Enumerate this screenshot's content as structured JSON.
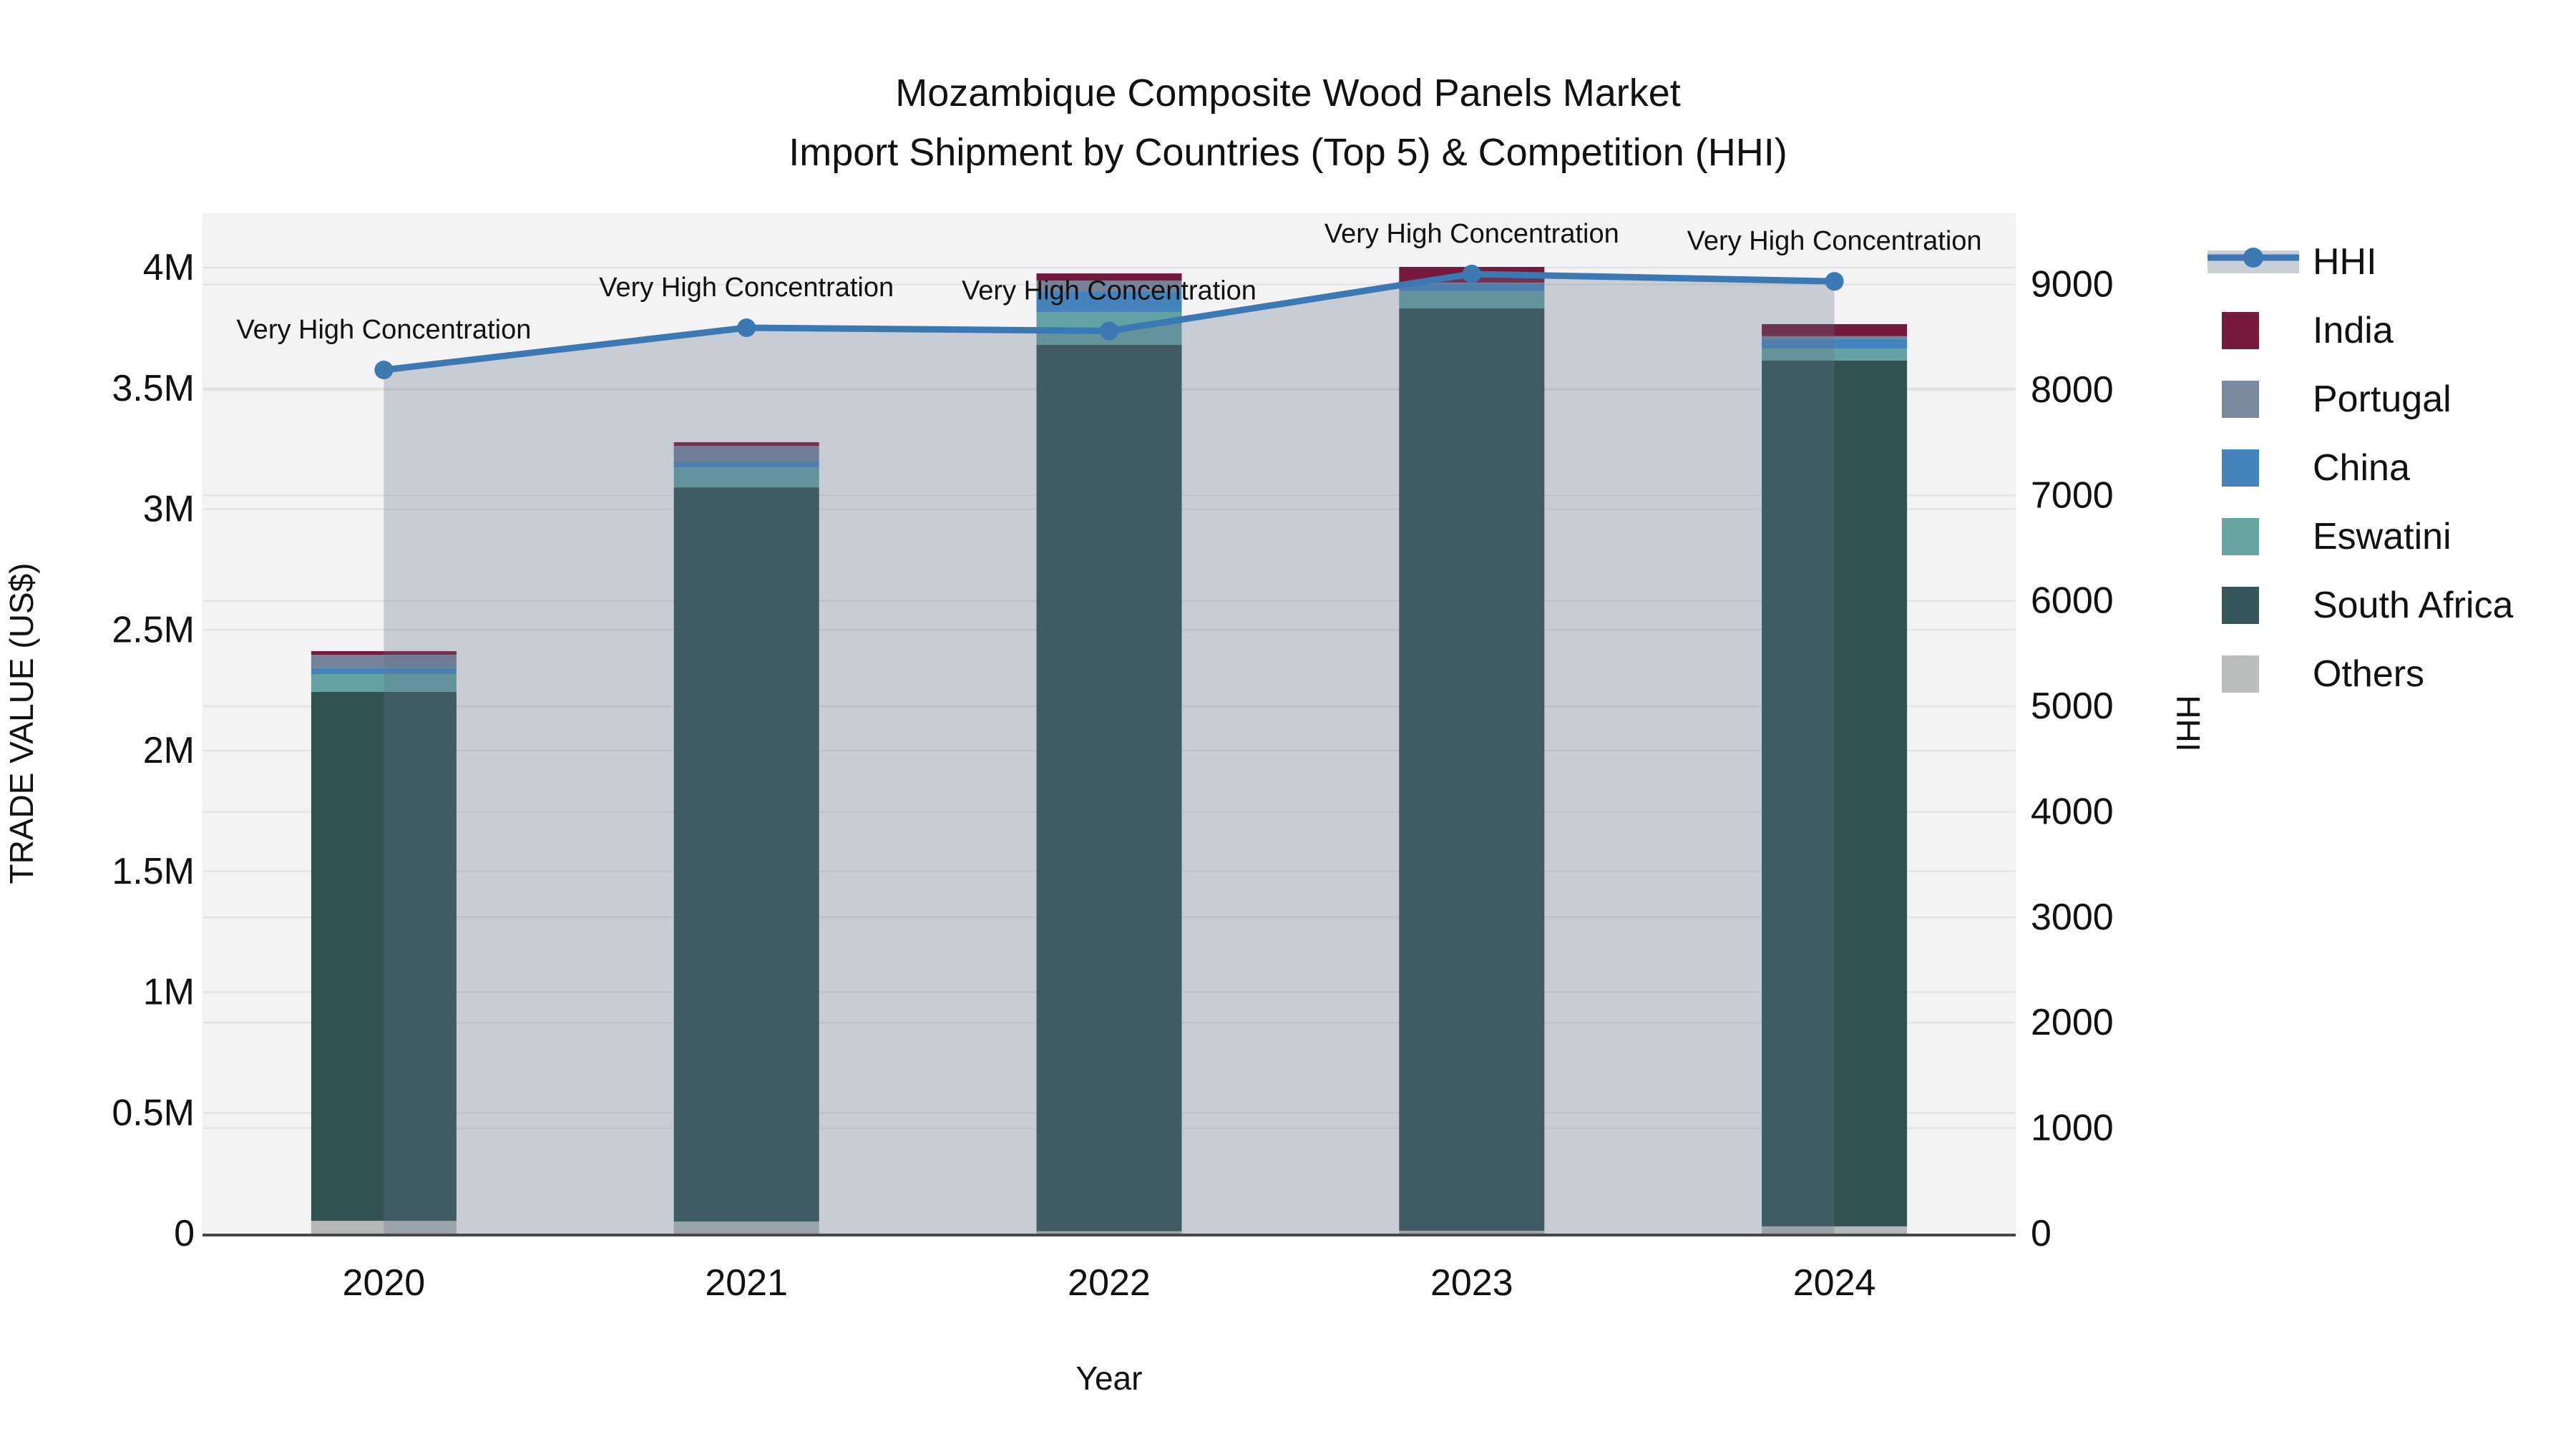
{
  "title": {
    "line1": "Mozambique Composite Wood Panels Market",
    "line2": "Import Shipment by Countries (Top 5) & Competition (HHI)"
  },
  "chart_data": {
    "type": "bar",
    "subtype": "stacked-bars-with-line-overlay",
    "categories": [
      "2020",
      "2021",
      "2022",
      "2023",
      "2024"
    ],
    "units_left": "US$ (millions)",
    "stack_order_bottom_to_top": [
      "Others",
      "South Africa",
      "Eswatini",
      "China",
      "Portugal",
      "India"
    ],
    "series": [
      {
        "name": "Others",
        "color": "#B4B8B9",
        "values_musd": [
          0.053,
          0.05,
          0.01,
          0.012,
          0.03
        ]
      },
      {
        "name": "South Africa",
        "color": "#315152",
        "values_musd": [
          2.19,
          3.04,
          3.67,
          3.82,
          3.585
        ]
      },
      {
        "name": "Eswatini",
        "color": "#63A2A3",
        "values_musd": [
          0.074,
          0.083,
          0.136,
          0.071,
          0.05
        ]
      },
      {
        "name": "China",
        "color": "#4583BD",
        "values_musd": [
          0.024,
          0.024,
          0.086,
          0.03,
          0.039
        ]
      },
      {
        "name": "Portugal",
        "color": "#74839A",
        "values_musd": [
          0.056,
          0.065,
          0.044,
          0.005,
          0.012
        ]
      },
      {
        "name": "India",
        "color": "#75193D",
        "values_musd": [
          0.015,
          0.015,
          0.03,
          0.065,
          0.05
        ]
      }
    ],
    "totals_musd": [
      2.412,
      3.277,
      3.976,
      4.003,
      3.766
    ],
    "hhi_line": {
      "name": "HHI",
      "color": "#3C79B3",
      "area_fill": "rgba(100,115,140,0.30)",
      "values": [
        8190,
        8590,
        8560,
        9100,
        9030
      ]
    },
    "annotations": [
      "Very High Concentration",
      "Very High Concentration",
      "Very High Concentration",
      "Very High Concentration",
      "Very High Concentration"
    ],
    "axes": {
      "x_label": "Year",
      "y_left_label": "TRADE VALUE (US$)",
      "y_left_ticks": [
        {
          "v": 0.0,
          "label": "0"
        },
        {
          "v": 0.5,
          "label": "0.5M"
        },
        {
          "v": 1.0,
          "label": "1M"
        },
        {
          "v": 1.5,
          "label": "1.5M"
        },
        {
          "v": 2.0,
          "label": "2M"
        },
        {
          "v": 2.5,
          "label": "2.5M"
        },
        {
          "v": 3.0,
          "label": "3M"
        },
        {
          "v": 3.5,
          "label": "3.5M"
        },
        {
          "v": 4.0,
          "label": "4M"
        }
      ],
      "y_right_label": "HHI",
      "y_right_ticks": [
        {
          "v": 0,
          "label": "0"
        },
        {
          "v": 1000,
          "label": "1000"
        },
        {
          "v": 2000,
          "label": "2000"
        },
        {
          "v": 3000,
          "label": "3000"
        },
        {
          "v": 4000,
          "label": "4000"
        },
        {
          "v": 5000,
          "label": "5000"
        },
        {
          "v": 6000,
          "label": "6000"
        },
        {
          "v": 7000,
          "label": "7000"
        },
        {
          "v": 8000,
          "label": "8000"
        },
        {
          "v": 9000,
          "label": "9000"
        }
      ],
      "grid": true,
      "legend_position": "right-outside"
    },
    "legend": [
      {
        "label": "HHI",
        "swatch": "line-on-band",
        "color": "#3C79B3",
        "band_color": "#C9CFD8"
      },
      {
        "label": "India",
        "swatch": "box",
        "color": "#75193D"
      },
      {
        "label": "Portugal",
        "swatch": "box",
        "color": "#7B8A9E"
      },
      {
        "label": "China",
        "swatch": "box",
        "color": "#4583BD"
      },
      {
        "label": "Eswatini",
        "swatch": "box",
        "color": "#67A4A2"
      },
      {
        "label": "South Africa",
        "swatch": "box",
        "color": "#35565B"
      },
      {
        "label": "Others",
        "swatch": "box",
        "color": "#B9BDBE"
      }
    ],
    "style": {
      "plot_bg": "#F3F3F5",
      "grid_color": "#E1E2E4",
      "axis_line_color": "#474747",
      "text_color": "#111111",
      "title_color": "#1C1C1C"
    }
  }
}
